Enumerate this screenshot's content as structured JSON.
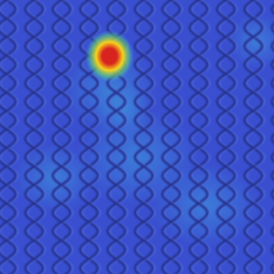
{
  "image": {
    "subject": "wire-mesh-fabric",
    "overlay": "heatmap",
    "colors": {
      "base": "#3a4fd0",
      "mesh_line": "#24308f",
      "mesh_highlight": "#5c77e6",
      "cool_haze": "#3fa0e0",
      "hot_core": "#d8241e",
      "hot_mid": "#f5d21e",
      "hot_edge": "#5fd07a"
    }
  }
}
